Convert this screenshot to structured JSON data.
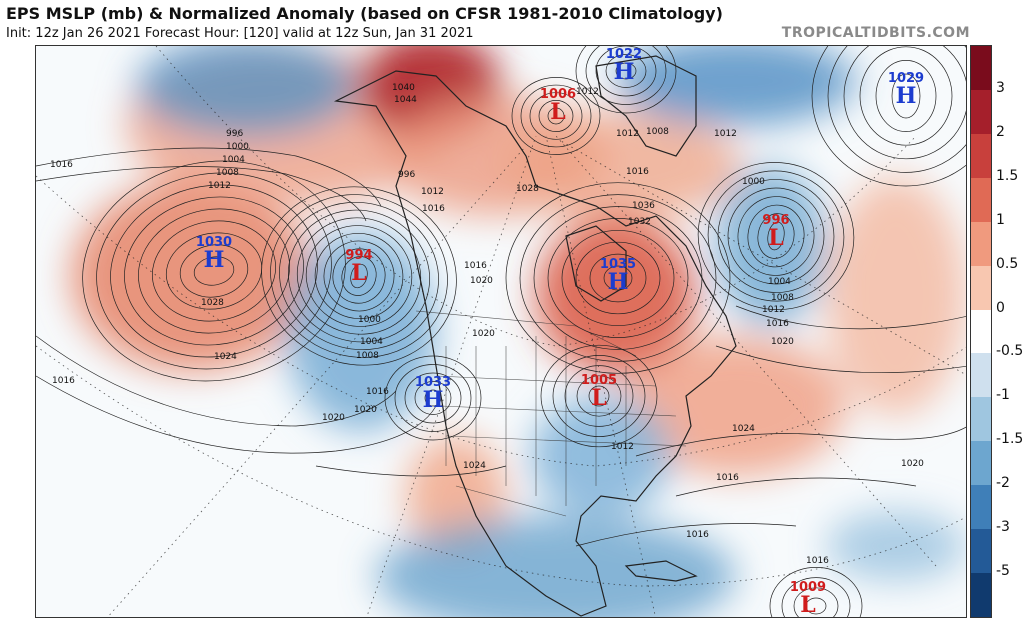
{
  "header": {
    "title": "EPS MSLP (mb) & Normalized Anomaly (based on CFSR 1981-2010 Climatology)",
    "subtitle": "Init: 12z Jan 26 2021   Forecast Hour: [120]   valid at 12z Sun, Jan 31 2021",
    "credit": "TROPICALTIDBITS.COM"
  },
  "colorbar": {
    "labels": [
      "3",
      "2",
      "1.5",
      "1",
      "0.5",
      "0",
      "-0.5",
      "-1",
      "-1.5",
      "-2",
      "-3",
      "-5"
    ],
    "colors": [
      "#7a0c1c",
      "#a51f2b",
      "#c8403c",
      "#e06a55",
      "#f09a7e",
      "#f8c7b0",
      "#ffffff",
      "#cfe0ee",
      "#9fc6e0",
      "#6da6cf",
      "#3f7fb8",
      "#235a97",
      "#103a6e"
    ]
  },
  "pressure_centers": [
    {
      "type": "H",
      "value": "1022"
    },
    {
      "type": "L",
      "value": "1006"
    },
    {
      "type": "H",
      "value": "1029"
    },
    {
      "type": "H",
      "value": "1030"
    },
    {
      "type": "L",
      "value": "994"
    },
    {
      "type": "L",
      "value": "996"
    },
    {
      "type": "H",
      "value": "1035"
    },
    {
      "type": "H",
      "value": "1033"
    },
    {
      "type": "L",
      "value": "1005"
    },
    {
      "type": "L",
      "value": "1009"
    }
  ],
  "isobar_labels": [
    "996",
    "1000",
    "1004",
    "1008",
    "1012",
    "1016",
    "1016",
    "1020",
    "1024",
    "1028",
    "1000",
    "1004",
    "1008",
    "1016",
    "1020",
    "1020",
    "1024",
    "1028",
    "1032",
    "1036",
    "1040",
    "1044",
    "1012",
    "1016",
    "1008",
    "1012",
    "1000",
    "1004",
    "1008",
    "1012",
    "1016",
    "1020",
    "1024",
    "1016",
    "1020",
    "1016",
    "1016",
    "1012",
    "1012",
    "1020",
    "1016",
    "996",
    "1012",
    "1016"
  ],
  "colors": {
    "positive_anomaly": "#e9866a",
    "negative_anomaly": "#7fb2d8",
    "high_label": "#1c3ccf",
    "low_label": "#d01c1c"
  }
}
